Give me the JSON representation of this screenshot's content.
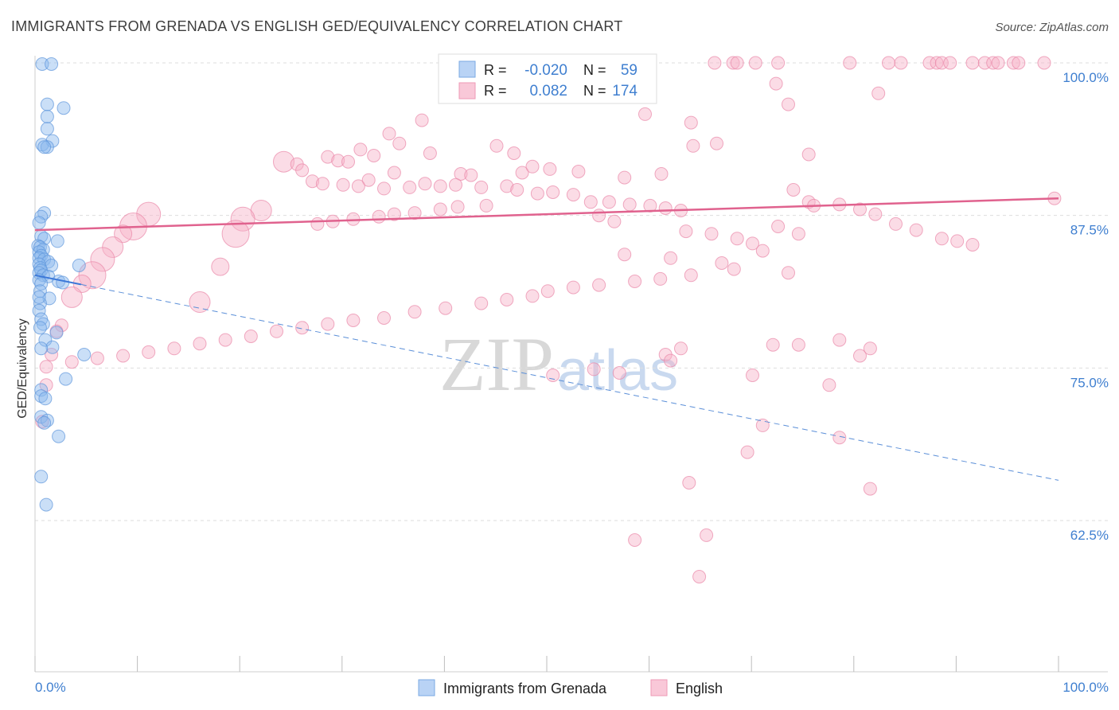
{
  "chart_data": {
    "type": "scatter",
    "title": "IMMIGRANTS FROM GRENADA VS ENGLISH GED/EQUIVALENCY CORRELATION CHART",
    "source": "Source: ZipAtlas.com",
    "xlabel": "",
    "ylabel": "GED/Equivalency",
    "xlim": [
      0,
      100
    ],
    "ylim": [
      50,
      100
    ],
    "x_tick_labels": [
      "0.0%",
      "100.0%"
    ],
    "y_ticks": [
      {
        "value": 100,
        "label": "100.0%"
      },
      {
        "value": 87.5,
        "label": "87.5%"
      },
      {
        "value": 75,
        "label": "75.0%"
      },
      {
        "value": 62.5,
        "label": "62.5%"
      }
    ],
    "watermark": {
      "zip": "ZIP",
      "atlas": "atlas"
    },
    "legend_box": [
      {
        "r_label": "R =",
        "r_value": "-0.020",
        "n_label": "N =",
        "n_value": "59"
      },
      {
        "r_label": "R =",
        "r_value": "0.082",
        "n_label": "N =",
        "n_value": "174"
      }
    ],
    "series": [
      {
        "name": "Immigrants from Grenada",
        "color": "#8ab7ee",
        "stroke": "#5e95db",
        "trend": {
          "x0": 0,
          "y0": 82.6,
          "x1": 100,
          "y1": 65.8,
          "style": "dashed",
          "solid_until": 4.5
        },
        "points": [
          [
            0.7,
            99.9
          ],
          [
            1.6,
            99.9
          ],
          [
            1.2,
            96.6
          ],
          [
            2.8,
            96.3
          ],
          [
            1.2,
            95.6
          ],
          [
            1.2,
            94.6
          ],
          [
            1.7,
            93.6
          ],
          [
            0.7,
            93.3
          ],
          [
            1.2,
            93.1
          ],
          [
            0.9,
            93.1
          ],
          [
            0.9,
            87.7
          ],
          [
            0.6,
            87.4
          ],
          [
            0.4,
            86.9
          ],
          [
            0.6,
            85.8
          ],
          [
            0.9,
            85.6
          ],
          [
            2.2,
            85.4
          ],
          [
            0.3,
            85.0
          ],
          [
            0.5,
            84.9
          ],
          [
            0.8,
            84.7
          ],
          [
            0.4,
            84.5
          ],
          [
            0.6,
            84.2
          ],
          [
            0.4,
            84.0
          ],
          [
            0.9,
            83.9
          ],
          [
            1.3,
            83.7
          ],
          [
            0.4,
            83.5
          ],
          [
            1.6,
            83.4
          ],
          [
            0.5,
            83.2
          ],
          [
            0.6,
            83.0
          ],
          [
            4.3,
            83.4
          ],
          [
            0.4,
            82.8
          ],
          [
            0.8,
            82.6
          ],
          [
            1.3,
            82.5
          ],
          [
            0.4,
            82.2
          ],
          [
            2.3,
            82.1
          ],
          [
            2.7,
            82.0
          ],
          [
            0.6,
            81.9
          ],
          [
            0.5,
            81.3
          ],
          [
            1.4,
            80.7
          ],
          [
            0.5,
            80.3
          ],
          [
            0.4,
            79.7
          ],
          [
            0.6,
            79.0
          ],
          [
            0.8,
            78.6
          ],
          [
            0.5,
            78.3
          ],
          [
            2.1,
            77.9
          ],
          [
            1.0,
            77.3
          ],
          [
            1.7,
            76.7
          ],
          [
            0.6,
            76.6
          ],
          [
            4.8,
            76.1
          ],
          [
            3.0,
            74.1
          ],
          [
            0.6,
            73.2
          ],
          [
            0.6,
            72.7
          ],
          [
            1.0,
            72.5
          ],
          [
            0.6,
            71.0
          ],
          [
            1.2,
            70.7
          ],
          [
            0.9,
            70.5
          ],
          [
            2.3,
            69.4
          ],
          [
            0.6,
            66.1
          ],
          [
            1.1,
            63.8
          ],
          [
            0.4,
            80.8
          ]
        ]
      },
      {
        "name": "English",
        "color": "#f7b2c8",
        "stroke": "#e987a8",
        "trend": {
          "x0": 0,
          "y0": 86.3,
          "x1": 100,
          "y1": 88.9,
          "style": "solid"
        },
        "points": [
          [
            66.4,
            100
          ],
          [
            68.2,
            100
          ],
          [
            68.6,
            100
          ],
          [
            70.4,
            100
          ],
          [
            72.6,
            100
          ],
          [
            79.6,
            100
          ],
          [
            83.4,
            100
          ],
          [
            84.6,
            100
          ],
          [
            87.4,
            100
          ],
          [
            88.1,
            100
          ],
          [
            88.6,
            100
          ],
          [
            89.4,
            100
          ],
          [
            91.6,
            100
          ],
          [
            92.8,
            100
          ],
          [
            93.6,
            100
          ],
          [
            94.1,
            100
          ],
          [
            95.6,
            100
          ],
          [
            96.1,
            100
          ],
          [
            98.6,
            100
          ],
          [
            72.4,
            98.3
          ],
          [
            82.4,
            97.5
          ],
          [
            73.6,
            96.6
          ],
          [
            59.6,
            95.8
          ],
          [
            37.8,
            95.3
          ],
          [
            64.1,
            95.1
          ],
          [
            34.6,
            94.2
          ],
          [
            35.6,
            93.4
          ],
          [
            45.1,
            93.2
          ],
          [
            64.3,
            93.2
          ],
          [
            66.6,
            93.4
          ],
          [
            31.8,
            92.9
          ],
          [
            46.8,
            92.6
          ],
          [
            38.6,
            92.6
          ],
          [
            33.1,
            92.4
          ],
          [
            28.6,
            92.3
          ],
          [
            29.6,
            92.0
          ],
          [
            30.6,
            91.9
          ],
          [
            24.3,
            91.9
          ],
          [
            25.6,
            91.7
          ],
          [
            26.1,
            91.2
          ],
          [
            47.6,
            91.0
          ],
          [
            53.1,
            91.1
          ],
          [
            35.1,
            91.0
          ],
          [
            75.6,
            92.5
          ],
          [
            41.6,
            90.9
          ],
          [
            42.6,
            90.8
          ],
          [
            48.6,
            91.5
          ],
          [
            50.3,
            91.3
          ],
          [
            61.2,
            90.9
          ],
          [
            57.6,
            90.6
          ],
          [
            32.6,
            90.4
          ],
          [
            27.1,
            90.3
          ],
          [
            28.1,
            90.1
          ],
          [
            30.1,
            90.0
          ],
          [
            31.6,
            89.9
          ],
          [
            34.1,
            89.7
          ],
          [
            36.6,
            89.8
          ],
          [
            38.1,
            90.1
          ],
          [
            39.6,
            89.9
          ],
          [
            41.1,
            90.0
          ],
          [
            43.6,
            89.8
          ],
          [
            46.1,
            89.9
          ],
          [
            47.1,
            89.6
          ],
          [
            49.1,
            89.3
          ],
          [
            50.6,
            89.4
          ],
          [
            52.6,
            89.2
          ],
          [
            54.3,
            88.6
          ],
          [
            56.1,
            88.6
          ],
          [
            58.1,
            88.4
          ],
          [
            60.1,
            88.3
          ],
          [
            61.6,
            88.1
          ],
          [
            63.1,
            87.9
          ],
          [
            44.1,
            88.3
          ],
          [
            41.3,
            88.2
          ],
          [
            39.6,
            88.0
          ],
          [
            37.1,
            87.7
          ],
          [
            35.1,
            87.6
          ],
          [
            33.6,
            87.4
          ],
          [
            31.1,
            87.2
          ],
          [
            29.1,
            87.0
          ],
          [
            27.6,
            86.8
          ],
          [
            74.1,
            89.6
          ],
          [
            75.6,
            88.6
          ],
          [
            76.1,
            88.3
          ],
          [
            78.6,
            88.4
          ],
          [
            80.6,
            88.0
          ],
          [
            82.1,
            87.6
          ],
          [
            84.1,
            86.8
          ],
          [
            86.1,
            86.3
          ],
          [
            88.6,
            85.6
          ],
          [
            90.1,
            85.4
          ],
          [
            91.6,
            85.1
          ],
          [
            99.6,
            88.9
          ],
          [
            72.6,
            86.6
          ],
          [
            74.6,
            86.0
          ],
          [
            63.6,
            86.2
          ],
          [
            66.1,
            86.0
          ],
          [
            68.6,
            85.6
          ],
          [
            70.1,
            85.2
          ],
          [
            71.1,
            84.6
          ],
          [
            57.6,
            84.3
          ],
          [
            62.1,
            84.0
          ],
          [
            67.1,
            83.6
          ],
          [
            68.3,
            83.1
          ],
          [
            73.6,
            82.8
          ],
          [
            64.1,
            82.6
          ],
          [
            61.1,
            82.3
          ],
          [
            58.6,
            82.1
          ],
          [
            55.1,
            81.8
          ],
          [
            52.6,
            81.6
          ],
          [
            50.1,
            81.3
          ],
          [
            48.6,
            80.9
          ],
          [
            46.1,
            80.6
          ],
          [
            43.6,
            80.3
          ],
          [
            40.1,
            79.9
          ],
          [
            37.1,
            79.6
          ],
          [
            34.1,
            79.1
          ],
          [
            31.1,
            78.9
          ],
          [
            28.6,
            78.6
          ],
          [
            26.1,
            78.3
          ],
          [
            23.6,
            78.0
          ],
          [
            21.1,
            77.6
          ],
          [
            18.6,
            77.3
          ],
          [
            16.1,
            77.0
          ],
          [
            13.6,
            76.6
          ],
          [
            11.1,
            76.3
          ],
          [
            8.6,
            76.0
          ],
          [
            6.1,
            75.8
          ],
          [
            3.6,
            75.5
          ],
          [
            1.1,
            75.1
          ],
          [
            72.1,
            76.9
          ],
          [
            74.6,
            76.9
          ],
          [
            78.6,
            77.3
          ],
          [
            80.6,
            76.0
          ],
          [
            81.6,
            76.6
          ],
          [
            63.1,
            76.6
          ],
          [
            61.6,
            76.1
          ],
          [
            62.1,
            75.6
          ],
          [
            50.6,
            74.4
          ],
          [
            54.6,
            74.9
          ],
          [
            57.1,
            74.6
          ],
          [
            70.1,
            74.4
          ],
          [
            77.6,
            73.6
          ],
          [
            71.1,
            70.3
          ],
          [
            78.6,
            69.3
          ],
          [
            69.6,
            68.1
          ],
          [
            81.6,
            65.1
          ],
          [
            63.9,
            65.6
          ],
          [
            58.6,
            60.9
          ],
          [
            65.6,
            61.3
          ],
          [
            64.9,
            57.9
          ],
          [
            55.1,
            87.5
          ],
          [
            56.6,
            87.0
          ],
          [
            22.1,
            87.9
          ],
          [
            20.3,
            87.2
          ],
          [
            19.6,
            86.0
          ],
          [
            18.1,
            83.3
          ],
          [
            16.1,
            80.4
          ],
          [
            11.1,
            87.6
          ],
          [
            9.6,
            86.6
          ],
          [
            8.6,
            86.0
          ],
          [
            7.6,
            84.9
          ],
          [
            6.6,
            83.9
          ],
          [
            5.6,
            82.6
          ],
          [
            4.6,
            81.9
          ],
          [
            3.6,
            80.8
          ],
          [
            2.6,
            78.5
          ],
          [
            2.1,
            78.0
          ],
          [
            1.6,
            76.1
          ],
          [
            1.1,
            73.6
          ],
          [
            0.7,
            70.6
          ]
        ]
      }
    ]
  }
}
